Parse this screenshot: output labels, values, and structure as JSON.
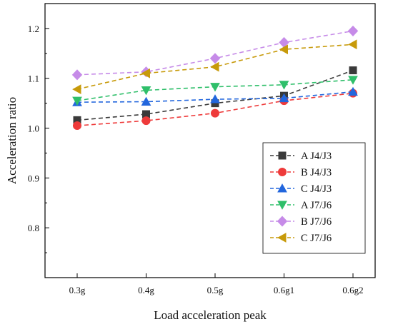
{
  "chart_data": {
    "type": "line",
    "xlabel": "Load acceleration peak",
    "ylabel": "Acceleration ratio",
    "categories": [
      "0.3g",
      "0.4g",
      "0.5g",
      "0.6g1",
      "0.6g2"
    ],
    "ylim": [
      0.7,
      1.25
    ],
    "yticks": [
      0.8,
      0.9,
      1.0,
      1.1,
      1.2
    ],
    "ytick_labels": [
      "0.8",
      "0.9",
      "1.0",
      "1.1",
      "1.2"
    ],
    "grid": false,
    "legend_position": "bottom-right",
    "series": [
      {
        "name": "A J4/J3",
        "values": [
          1.016,
          1.028,
          1.05,
          1.065,
          1.116
        ],
        "color": "#3a3a3a",
        "marker": "square"
      },
      {
        "name": "B J4/J3",
        "values": [
          1.005,
          1.015,
          1.03,
          1.055,
          1.07
        ],
        "color": "#ee3a3a",
        "marker": "circle"
      },
      {
        "name": "C J4/J3",
        "values": [
          1.052,
          1.053,
          1.058,
          1.06,
          1.073
        ],
        "color": "#2266dd",
        "marker": "triangle-up"
      },
      {
        "name": "A J7/J6",
        "values": [
          1.055,
          1.076,
          1.083,
          1.087,
          1.097
        ],
        "color": "#2fbf6a",
        "marker": "triangle-down"
      },
      {
        "name": "B J7/J6",
        "values": [
          1.107,
          1.113,
          1.14,
          1.172,
          1.195
        ],
        "color": "#c68be8",
        "marker": "diamond"
      },
      {
        "name": "C J7/J6",
        "values": [
          1.078,
          1.11,
          1.123,
          1.158,
          1.168
        ],
        "color": "#c79a0a",
        "marker": "triangle-left"
      }
    ]
  }
}
